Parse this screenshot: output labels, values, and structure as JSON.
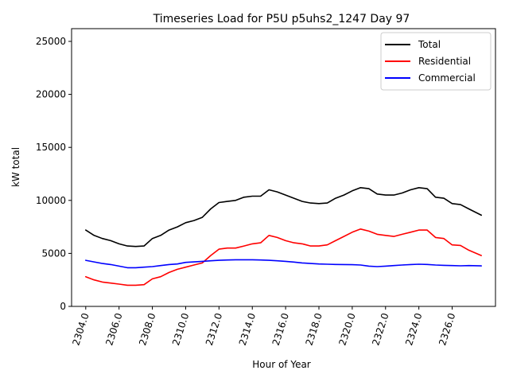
{
  "chart_data": {
    "type": "line",
    "title": "Timeseries Load for P5U p5uhs2_1247  Day 97",
    "xlabel": "Hour of Year",
    "ylabel": "kW total",
    "xlim": [
      2303.15,
      2328.6
    ],
    "ylim": [
      0,
      26200
    ],
    "grid": false,
    "legend_position": "top-right",
    "xticks": [
      2304,
      2306,
      2308,
      2310,
      2312,
      2314,
      2316,
      2318,
      2320,
      2322,
      2324,
      2326
    ],
    "xtick_labels": [
      "2304.0",
      "2306.0",
      "2308.0",
      "2310.0",
      "2312.0",
      "2314.0",
      "2316.0",
      "2318.0",
      "2320.0",
      "2322.0",
      "2324.0",
      "2326.0"
    ],
    "yticks": [
      0,
      5000,
      10000,
      15000,
      20000,
      25000
    ],
    "ytick_labels": [
      "0",
      "5000",
      "10000",
      "15000",
      "20000",
      "25000"
    ],
    "x": [
      2304.0,
      2304.5,
      2305.0,
      2305.5,
      2306.0,
      2306.5,
      2307.0,
      2307.5,
      2308.0,
      2308.5,
      2309.0,
      2309.5,
      2310.0,
      2310.5,
      2311.0,
      2311.5,
      2312.0,
      2312.5,
      2313.0,
      2313.5,
      2314.0,
      2314.5,
      2315.0,
      2315.5,
      2316.0,
      2316.5,
      2317.0,
      2317.5,
      2318.0,
      2318.5,
      2319.0,
      2319.5,
      2320.0,
      2320.5,
      2321.0,
      2321.5,
      2322.0,
      2322.5,
      2323.0,
      2323.5,
      2324.0,
      2324.5,
      2325.0,
      2325.5,
      2326.0,
      2326.5,
      2327.0,
      2327.75
    ],
    "series": [
      {
        "name": "Total",
        "color": "#000000",
        "values": [
          7200,
          6700,
          6400,
          6200,
          5900,
          5700,
          5650,
          5700,
          6400,
          6700,
          7200,
          7500,
          7900,
          8100,
          8400,
          9200,
          9800,
          9900,
          10000,
          10300,
          10400,
          10400,
          11000,
          10800,
          10500,
          10200,
          9900,
          9750,
          9700,
          9750,
          10200,
          10500,
          10900,
          11200,
          11100,
          10600,
          10500,
          10500,
          10700,
          11000,
          11200,
          11100,
          10300,
          10200,
          9700,
          9600,
          9200,
          8600
        ]
      },
      {
        "name": "Residential",
        "color": "#ff0000",
        "values": [
          2800,
          2500,
          2300,
          2200,
          2100,
          2000,
          2000,
          2050,
          2600,
          2800,
          3200,
          3500,
          3700,
          3900,
          4100,
          4800,
          5400,
          5500,
          5500,
          5700,
          5900,
          6000,
          6700,
          6500,
          6200,
          6000,
          5900,
          5700,
          5700,
          5800,
          6200,
          6600,
          7000,
          7300,
          7100,
          6800,
          6700,
          6600,
          6800,
          7000,
          7200,
          7200,
          6500,
          6400,
          5800,
          5750,
          5300,
          4800
        ]
      },
      {
        "name": "Commercial",
        "color": "#0000ff",
        "values": [
          4350,
          4200,
          4050,
          3950,
          3800,
          3650,
          3650,
          3700,
          3750,
          3850,
          3950,
          4000,
          4150,
          4200,
          4250,
          4300,
          4350,
          4380,
          4400,
          4400,
          4400,
          4380,
          4350,
          4300,
          4250,
          4180,
          4100,
          4050,
          4000,
          3980,
          3960,
          3950,
          3930,
          3900,
          3800,
          3750,
          3800,
          3850,
          3900,
          3950,
          3980,
          3960,
          3900,
          3870,
          3850,
          3830,
          3850,
          3820
        ]
      }
    ]
  }
}
